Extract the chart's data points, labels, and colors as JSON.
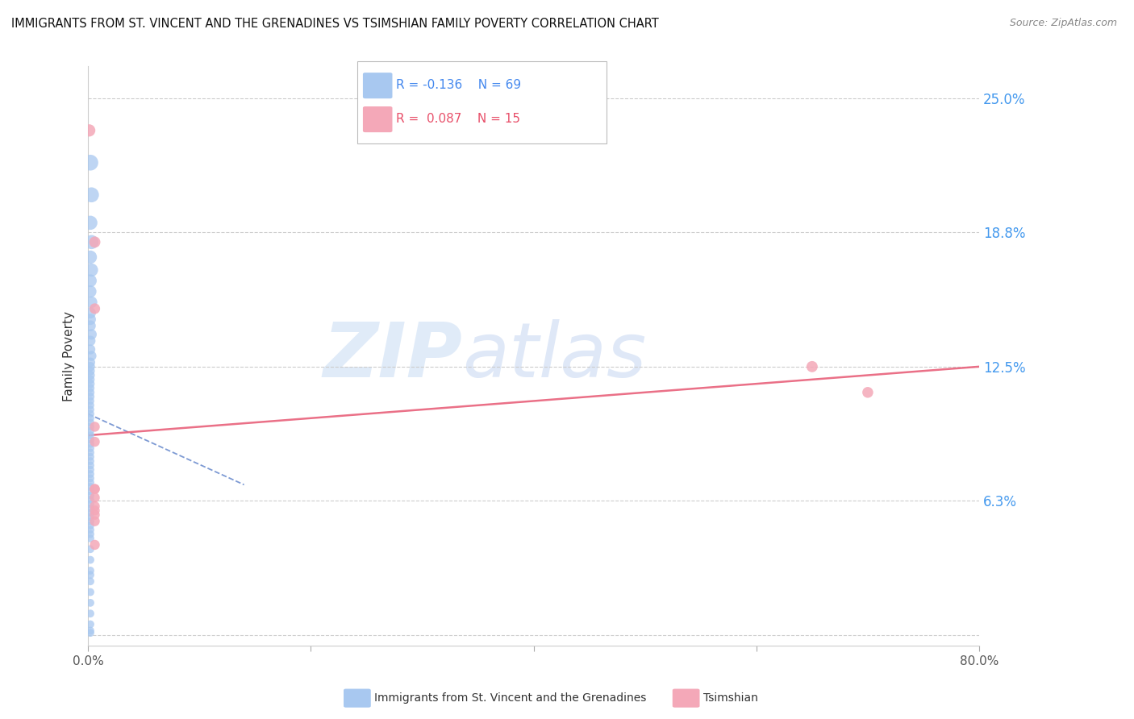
{
  "title": "IMMIGRANTS FROM ST. VINCENT AND THE GRENADINES VS TSIMSHIAN FAMILY POVERTY CORRELATION CHART",
  "source": "Source: ZipAtlas.com",
  "ylabel": "Family Poverty",
  "yticks": [
    0.0,
    0.0625,
    0.125,
    0.1875,
    0.25
  ],
  "ytick_labels": [
    "",
    "6.3%",
    "12.5%",
    "18.8%",
    "25.0%"
  ],
  "xlim": [
    0.0,
    0.8
  ],
  "ylim": [
    -0.005,
    0.265
  ],
  "blue_color": "#A8C8F0",
  "pink_color": "#F4A8B8",
  "blue_line_color": "#6688CC",
  "pink_line_color": "#E8607A",
  "blue_scatter_x": [
    0.002,
    0.003,
    0.002,
    0.003,
    0.002,
    0.003,
    0.002,
    0.002,
    0.003,
    0.002,
    0.002,
    0.002,
    0.003,
    0.002,
    0.002,
    0.003,
    0.002,
    0.002,
    0.002,
    0.002,
    0.002,
    0.002,
    0.002,
    0.002,
    0.002,
    0.002,
    0.002,
    0.002,
    0.002,
    0.002,
    0.002,
    0.002,
    0.002,
    0.002,
    0.002,
    0.002,
    0.002,
    0.002,
    0.002,
    0.002,
    0.002,
    0.002,
    0.002,
    0.002,
    0.002,
    0.002,
    0.002,
    0.002,
    0.002,
    0.002,
    0.002,
    0.002,
    0.002,
    0.002,
    0.002,
    0.002,
    0.002,
    0.002,
    0.002,
    0.002,
    0.002,
    0.002,
    0.002,
    0.002,
    0.002,
    0.002,
    0.002,
    0.002,
    0.002
  ],
  "blue_scatter_y": [
    0.22,
    0.205,
    0.192,
    0.183,
    0.176,
    0.17,
    0.165,
    0.16,
    0.155,
    0.15,
    0.147,
    0.144,
    0.14,
    0.137,
    0.133,
    0.13,
    0.127,
    0.125,
    0.123,
    0.121,
    0.119,
    0.117,
    0.115,
    0.113,
    0.111,
    0.109,
    0.107,
    0.105,
    0.103,
    0.101,
    0.099,
    0.097,
    0.095,
    0.093,
    0.091,
    0.089,
    0.087,
    0.085,
    0.083,
    0.081,
    0.079,
    0.077,
    0.075,
    0.073,
    0.071,
    0.069,
    0.067,
    0.065,
    0.063,
    0.061,
    0.059,
    0.057,
    0.055,
    0.053,
    0.051,
    0.049,
    0.047,
    0.045,
    0.04,
    0.035,
    0.03,
    0.025,
    0.02,
    0.015,
    0.01,
    0.005,
    0.002,
    0.001,
    0.028
  ],
  "blue_scatter_sizes": [
    200,
    180,
    160,
    160,
    140,
    140,
    130,
    120,
    110,
    100,
    100,
    95,
    90,
    85,
    80,
    80,
    75,
    70,
    65,
    65,
    60,
    60,
    55,
    55,
    55,
    50,
    50,
    50,
    50,
    50,
    50,
    50,
    50,
    50,
    50,
    50,
    50,
    50,
    50,
    50,
    50,
    50,
    50,
    50,
    50,
    50,
    50,
    50,
    50,
    50,
    50,
    50,
    50,
    50,
    50,
    50,
    50,
    50,
    50,
    50,
    50,
    50,
    50,
    50,
    50,
    50,
    50,
    50,
    50
  ],
  "pink_scatter_x": [
    0.001,
    0.006,
    0.006,
    0.006,
    0.006,
    0.006,
    0.006,
    0.006,
    0.006,
    0.006,
    0.65,
    0.7,
    0.006,
    0.006,
    0.006
  ],
  "pink_scatter_y": [
    0.235,
    0.183,
    0.152,
    0.097,
    0.09,
    0.068,
    0.068,
    0.064,
    0.06,
    0.056,
    0.125,
    0.113,
    0.058,
    0.053,
    0.042
  ],
  "pink_scatter_sizes": [
    120,
    100,
    90,
    80,
    80,
    80,
    80,
    80,
    80,
    80,
    100,
    95,
    80,
    80,
    80
  ],
  "blue_line_x": [
    0.0,
    0.14
  ],
  "blue_line_y_start": 0.103,
  "blue_line_y_end": 0.07,
  "pink_line_x": [
    0.0,
    0.8
  ],
  "pink_line_y_start": 0.093,
  "pink_line_y_end": 0.125,
  "legend_r_blue": "R = -0.136",
  "legend_n_blue": "N = 69",
  "legend_r_pink": "R =  0.087",
  "legend_n_pink": "N = 15",
  "legend1_label": "Immigrants from St. Vincent and the Grenadines",
  "legend2_label": "Tsimshian",
  "watermark_zip": "ZIP",
  "watermark_atlas": "atlas",
  "background_color": "#ffffff",
  "grid_color": "#cccccc",
  "ylabel_color": "#333333",
  "axis_label_color": "#4499EE",
  "title_color": "#111111",
  "source_color": "#888888"
}
